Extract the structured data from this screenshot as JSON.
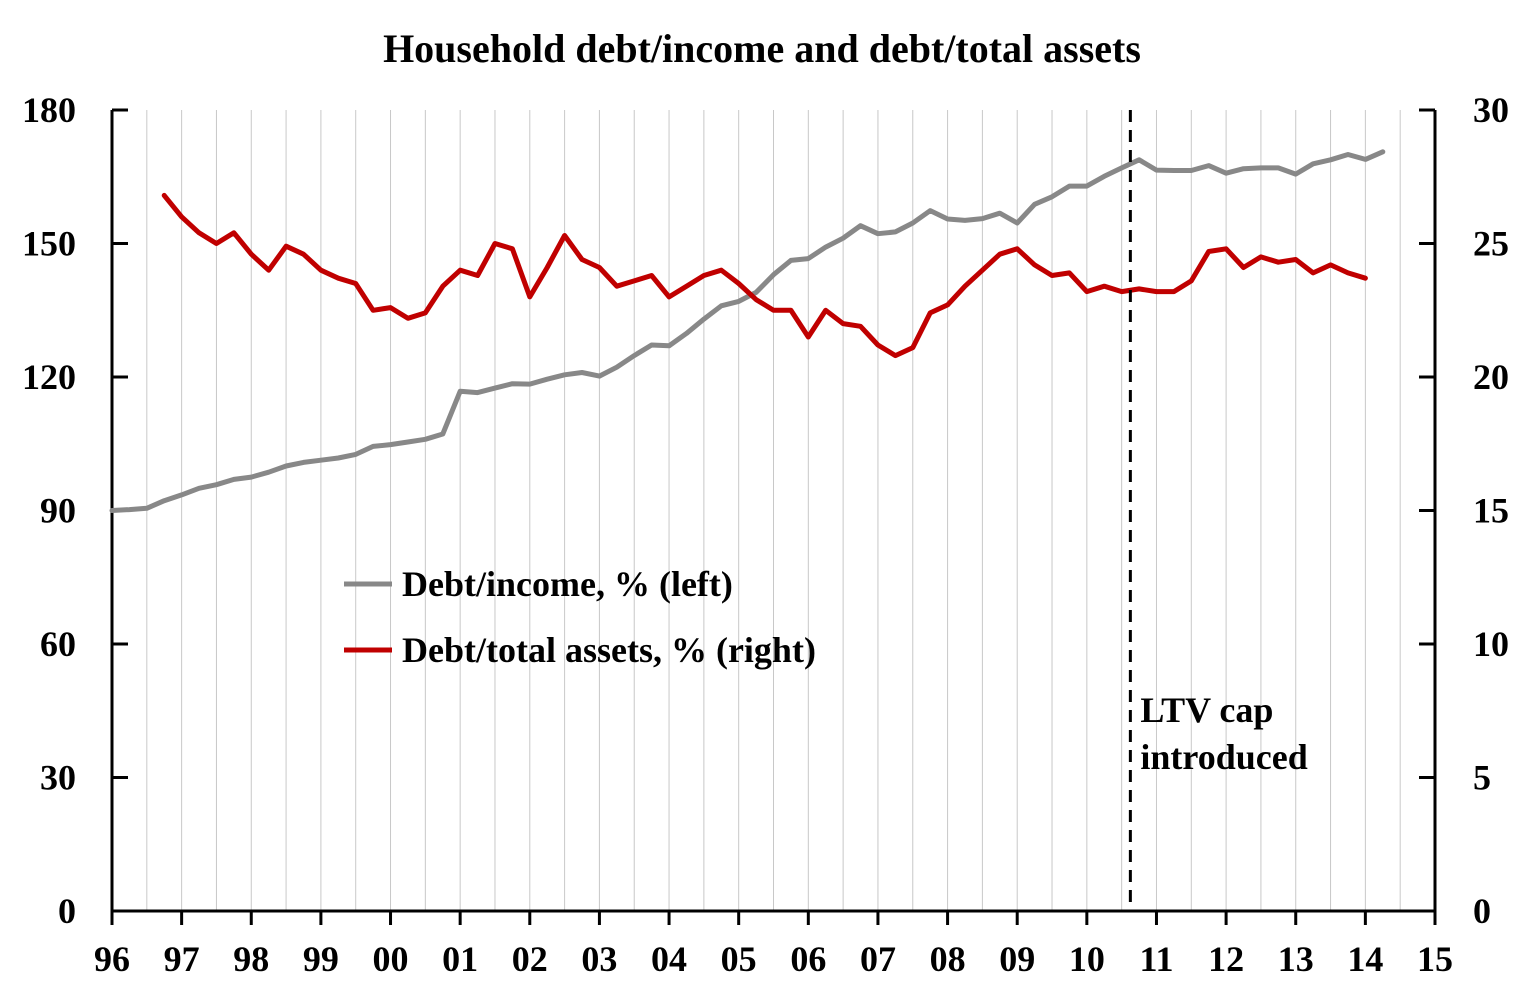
{
  "chart_data": {
    "type": "line",
    "title": "Household debt/income and debt/total assets",
    "x_start": 1996.0,
    "x_end": 2015.0,
    "x_tick_labels": [
      "96",
      "97",
      "98",
      "99",
      "00",
      "01",
      "02",
      "03",
      "04",
      "05",
      "06",
      "07",
      "08",
      "09",
      "10",
      "11",
      "12",
      "13",
      "14",
      "15"
    ],
    "y_left": {
      "min": 0,
      "max": 180,
      "ticks": [
        0,
        30,
        60,
        90,
        120,
        150,
        180
      ]
    },
    "y_right": {
      "min": 0,
      "max": 30,
      "ticks": [
        0,
        5,
        10,
        15,
        20,
        25,
        30
      ]
    },
    "grid": "vertical",
    "series": [
      {
        "name": "Debt/income, % (left)",
        "axis": "left",
        "color": "#888888",
        "x_start": 1996.0,
        "step": 0.25,
        "values": [
          90.0,
          90.2,
          90.5,
          92.2,
          93.5,
          95.0,
          95.8,
          97.0,
          97.5,
          98.6,
          100.0,
          100.8,
          101.3,
          101.8,
          102.6,
          104.4,
          104.8,
          105.4,
          106.0,
          107.2,
          116.8,
          116.5,
          117.5,
          118.5,
          118.4,
          119.5,
          120.5,
          121.0,
          120.2,
          122.2,
          124.8,
          127.2,
          127.0,
          129.8,
          133.0,
          136.0,
          137.0,
          139.0,
          143.0,
          146.2,
          146.6,
          149.2,
          151.2,
          154.0,
          152.2,
          152.6,
          154.6,
          157.4,
          155.5,
          155.2,
          155.6,
          156.8,
          154.6,
          158.8,
          160.5,
          162.9,
          162.9,
          165.1,
          167.0,
          168.8,
          166.5,
          166.4,
          166.4,
          167.5,
          165.8,
          166.8,
          167.0,
          167.0,
          165.6,
          167.9,
          168.8,
          170.0,
          168.9,
          170.6
        ]
      },
      {
        "name": "Debt/total assets, % (right)",
        "axis": "right",
        "color": "#c00000",
        "x_start": 1996.75,
        "step": 0.25,
        "values": [
          26.8,
          26.0,
          25.4,
          25.0,
          25.4,
          24.6,
          24.0,
          24.9,
          24.6,
          24.0,
          23.7,
          23.5,
          22.5,
          22.6,
          22.2,
          22.4,
          23.4,
          24.0,
          23.8,
          25.0,
          24.8,
          23.0,
          24.1,
          25.3,
          24.4,
          24.1,
          23.4,
          23.6,
          23.8,
          23.0,
          23.4,
          23.8,
          24.0,
          23.5,
          22.9,
          22.5,
          22.5,
          21.5,
          22.5,
          22.0,
          21.9,
          21.2,
          20.8,
          21.1,
          22.4,
          22.7,
          23.4,
          24.0,
          24.6,
          24.8,
          24.2,
          23.8,
          23.9,
          23.2,
          23.4,
          23.2,
          23.3,
          23.2,
          23.2,
          23.6,
          24.7,
          24.8,
          24.1,
          24.5,
          24.3,
          24.4,
          23.9,
          24.2,
          23.9,
          23.7
        ]
      }
    ],
    "annotations": [
      {
        "text_lines": [
          "LTV cap",
          "introduced"
        ],
        "x": 2010.625,
        "style": "dashed-vertical-line"
      }
    ],
    "legend": {
      "placement": "center-left"
    }
  }
}
